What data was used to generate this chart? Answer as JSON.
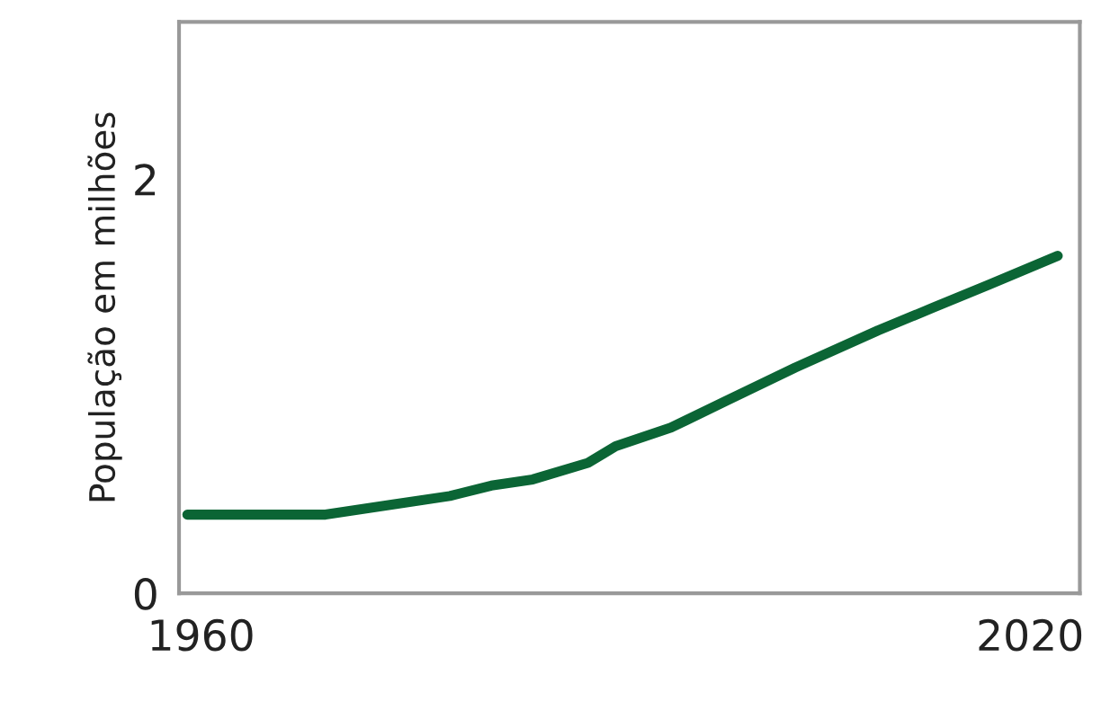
{
  "chart_data": {
    "type": "line",
    "ylabel": "População em milhões",
    "x": [
      1959,
      1969,
      1974,
      1978,
      1981,
      1984,
      1988,
      1990,
      1994,
      1998,
      2003,
      2009,
      2013,
      2017,
      2022
    ],
    "series": [
      {
        "color": "#0b6535",
        "values": [
          0.38,
          0.38,
          0.43,
          0.47,
          0.52,
          0.55,
          0.63,
          0.71,
          0.8,
          0.93,
          1.09,
          1.27,
          1.38,
          1.49,
          1.63
        ]
      }
    ],
    "xlim": [
      1958.4,
      2023.6
    ],
    "xticks": [
      1960,
      2020
    ],
    "ylim": [
      0,
      2.76
    ],
    "yticks": [
      0,
      2
    ],
    "grid": false,
    "marker": "none",
    "line_style": "solid"
  }
}
